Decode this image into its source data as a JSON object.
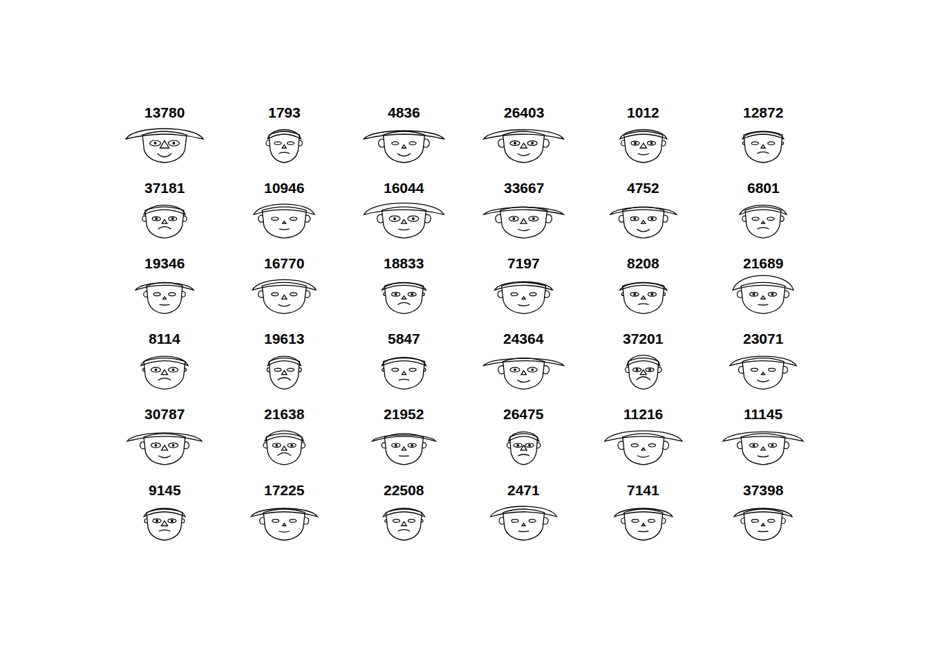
{
  "chart_data": {
    "type": "faces",
    "tick_labels": false,
    "color": "#000000",
    "faces": [
      {
        "label": "13780",
        "face_width": 32,
        "hat_width": 56,
        "hat_height": 14,
        "eye_size": 5,
        "nose_size": 8,
        "mouth_curve": 0.8,
        "ear_size": 0
      },
      {
        "label": "1793",
        "face_width": 22,
        "hat_width": 24,
        "hat_height": 12,
        "eye_size": 2,
        "nose_size": 3,
        "mouth_curve": -0.3,
        "ear_size": 4
      },
      {
        "label": "4836",
        "face_width": 30,
        "hat_width": 58,
        "hat_height": 10,
        "eye_size": 2,
        "nose_size": 3,
        "mouth_curve": 0.6,
        "ear_size": 6
      },
      {
        "label": "26403",
        "face_width": 30,
        "hat_width": 58,
        "hat_height": 12,
        "eye_size": 4,
        "nose_size": 5,
        "mouth_curve": 0.5,
        "ear_size": 6
      },
      {
        "label": "1012",
        "face_width": 28,
        "hat_width": 34,
        "hat_height": 12,
        "eye_size": 3,
        "nose_size": 5,
        "mouth_curve": 0.3,
        "ear_size": 4
      },
      {
        "label": "12872",
        "face_width": 28,
        "hat_width": 30,
        "hat_height": 8,
        "eye_size": 2,
        "nose_size": 3,
        "mouth_curve": -0.4,
        "ear_size": 2
      },
      {
        "label": "37181",
        "face_width": 28,
        "hat_width": 30,
        "hat_height": 12,
        "eye_size": 3,
        "nose_size": 4,
        "mouth_curve": -0.6,
        "ear_size": 4
      },
      {
        "label": "10946",
        "face_width": 32,
        "hat_width": 44,
        "hat_height": 14,
        "eye_size": 2,
        "nose_size": 2,
        "mouth_curve": 0.1,
        "ear_size": 5
      },
      {
        "label": "16044",
        "face_width": 32,
        "hat_width": 58,
        "hat_height": 16,
        "eye_size": 5,
        "nose_size": 4,
        "mouth_curve": 0.2,
        "ear_size": 6
      },
      {
        "label": "33667",
        "face_width": 34,
        "hat_width": 58,
        "hat_height": 8,
        "eye_size": 4,
        "nose_size": 5,
        "mouth_curve": 0.4,
        "ear_size": 6
      },
      {
        "label": "4752",
        "face_width": 30,
        "hat_width": 48,
        "hat_height": 8,
        "eye_size": 3,
        "nose_size": 3,
        "mouth_curve": 0.6,
        "ear_size": 5
      },
      {
        "label": "6801",
        "face_width": 26,
        "hat_width": 34,
        "hat_height": 12,
        "eye_size": 2,
        "nose_size": 2,
        "mouth_curve": -0.4,
        "ear_size": 4
      },
      {
        "label": "19346",
        "face_width": 26,
        "hat_width": 42,
        "hat_height": 8,
        "eye_size": 2,
        "nose_size": 2,
        "mouth_curve": 0.1,
        "ear_size": 4
      },
      {
        "label": "16770",
        "face_width": 32,
        "hat_width": 46,
        "hat_height": 14,
        "eye_size": 2,
        "nose_size": 4,
        "mouth_curve": 0.4,
        "ear_size": 5
      },
      {
        "label": "18833",
        "face_width": 28,
        "hat_width": 32,
        "hat_height": 8,
        "eye_size": 3,
        "nose_size": 3,
        "mouth_curve": -0.5,
        "ear_size": 2
      },
      {
        "label": "7197",
        "face_width": 32,
        "hat_width": 42,
        "hat_height": 10,
        "eye_size": 2,
        "nose_size": 2,
        "mouth_curve": 0.3,
        "ear_size": 5
      },
      {
        "label": "8208",
        "face_width": 30,
        "hat_width": 34,
        "hat_height": 8,
        "eye_size": 3,
        "nose_size": 3,
        "mouth_curve": -0.2,
        "ear_size": 2
      },
      {
        "label": "21689",
        "face_width": 32,
        "hat_width": 44,
        "hat_height": 22,
        "eye_size": 3,
        "nose_size": 3,
        "mouth_curve": 0.1,
        "ear_size": 5
      },
      {
        "label": "8114",
        "face_width": 30,
        "hat_width": 34,
        "hat_height": 12,
        "eye_size": 4,
        "nose_size": 5,
        "mouth_curve": -0.5,
        "ear_size": 2
      },
      {
        "label": "19613",
        "face_width": 22,
        "hat_width": 24,
        "hat_height": 12,
        "eye_size": 2,
        "nose_size": 4,
        "mouth_curve": -0.6,
        "ear_size": 3
      },
      {
        "label": "5847",
        "face_width": 30,
        "hat_width": 32,
        "hat_height": 10,
        "eye_size": 2,
        "nose_size": 3,
        "mouth_curve": -0.2,
        "ear_size": 2
      },
      {
        "label": "24364",
        "face_width": 30,
        "hat_width": 58,
        "hat_height": 8,
        "eye_size": 4,
        "nose_size": 4,
        "mouth_curve": 0.5,
        "ear_size": 6
      },
      {
        "label": "37201",
        "face_width": 22,
        "hat_width": 24,
        "hat_height": 14,
        "eye_size": 3,
        "nose_size": 5,
        "mouth_curve": -0.8,
        "ear_size": 4
      },
      {
        "label": "23071",
        "face_width": 30,
        "hat_width": 48,
        "hat_height": 12,
        "eye_size": 2,
        "nose_size": 2,
        "mouth_curve": 0.4,
        "ear_size": 5
      },
      {
        "label": "30787",
        "face_width": 30,
        "hat_width": 54,
        "hat_height": 10,
        "eye_size": 4,
        "nose_size": 5,
        "mouth_curve": 0.5,
        "ear_size": 5
      },
      {
        "label": "21638",
        "face_width": 26,
        "hat_width": 28,
        "hat_height": 14,
        "eye_size": 3,
        "nose_size": 4,
        "mouth_curve": -0.7,
        "ear_size": 4
      },
      {
        "label": "21952",
        "face_width": 28,
        "hat_width": 46,
        "hat_height": 6,
        "eye_size": 3,
        "nose_size": 3,
        "mouth_curve": 0.1,
        "ear_size": 4
      },
      {
        "label": "26475",
        "face_width": 20,
        "hat_width": 22,
        "hat_height": 12,
        "eye_size": 3,
        "nose_size": 5,
        "mouth_curve": -0.3,
        "ear_size": 4
      },
      {
        "label": "11216",
        "face_width": 30,
        "hat_width": 56,
        "hat_height": 14,
        "eye_size": 2,
        "nose_size": 2,
        "mouth_curve": 0.4,
        "ear_size": 6
      },
      {
        "label": "11145",
        "face_width": 32,
        "hat_width": 58,
        "hat_height": 12,
        "eye_size": 3,
        "nose_size": 3,
        "mouth_curve": 0.3,
        "ear_size": 5
      },
      {
        "label": "9145",
        "face_width": 26,
        "hat_width": 30,
        "hat_height": 10,
        "eye_size": 3,
        "nose_size": 5,
        "mouth_curve": -0.3,
        "ear_size": 3
      },
      {
        "label": "17225",
        "face_width": 30,
        "hat_width": 48,
        "hat_height": 10,
        "eye_size": 2,
        "nose_size": 2,
        "mouth_curve": 0.2,
        "ear_size": 5
      },
      {
        "label": "22508",
        "face_width": 26,
        "hat_width": 30,
        "hat_height": 10,
        "eye_size": 2,
        "nose_size": 4,
        "mouth_curve": -0.4,
        "ear_size": 2
      },
      {
        "label": "2471",
        "face_width": 30,
        "hat_width": 48,
        "hat_height": 14,
        "eye_size": 2,
        "nose_size": 2,
        "mouth_curve": 0.1,
        "ear_size": 5
      },
      {
        "label": "7141",
        "face_width": 28,
        "hat_width": 42,
        "hat_height": 10,
        "eye_size": 2,
        "nose_size": 2,
        "mouth_curve": 0.1,
        "ear_size": 4
      },
      {
        "label": "37398",
        "face_width": 28,
        "hat_width": 42,
        "hat_height": 10,
        "eye_size": 2,
        "nose_size": 2,
        "mouth_curve": 0.1,
        "ear_size": 4
      }
    ]
  }
}
